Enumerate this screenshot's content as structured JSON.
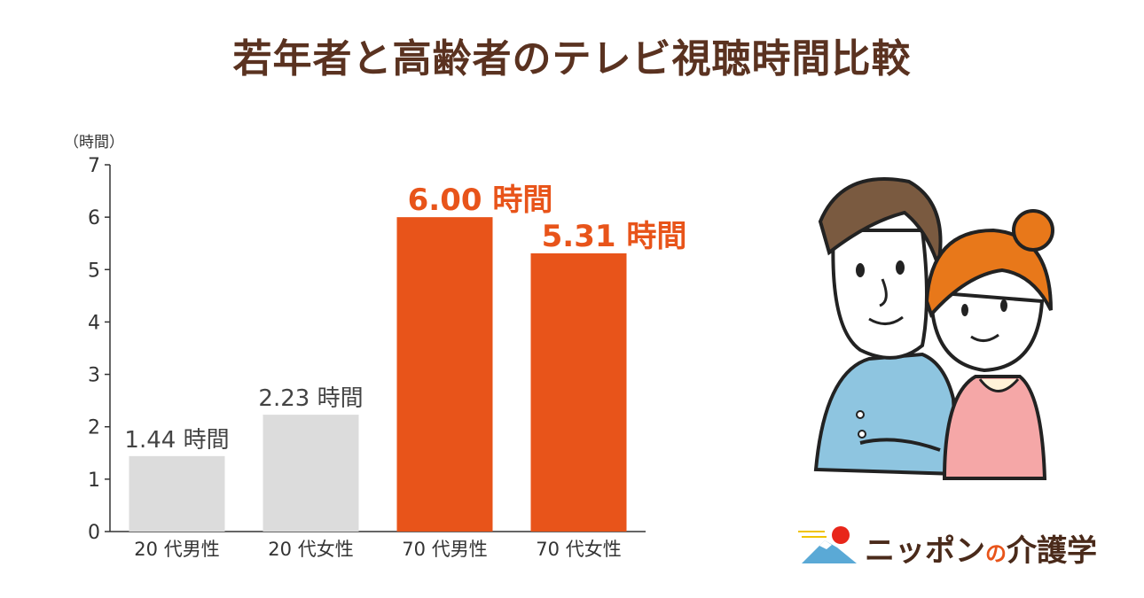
{
  "title": "若年者と高齢者のテレビ視聴時間比較",
  "brand": {
    "part1": "ニッポン",
    "part2": "の",
    "part3": "介護学"
  },
  "colors": {
    "gray_bar": "#dcdcdc",
    "accent": "#e8541a",
    "text": "#5a3220",
    "axis": "#333333"
  },
  "chart_data": {
    "type": "bar",
    "title": "若年者と高齢者のテレビ視聴時間比較",
    "xlabel": "",
    "ylabel": "（時間）",
    "ylim": [
      0,
      7
    ],
    "yticks": [
      0,
      1,
      2,
      3,
      4,
      5,
      6,
      7
    ],
    "categories": [
      "20 代男性",
      "20 代女性",
      "70 代男性",
      "70 代女性"
    ],
    "values": [
      1.44,
      2.23,
      6.0,
      5.31
    ],
    "data_labels": [
      "1.44 時間",
      "2.23 時間",
      "6.00 時間",
      "5.31 時間"
    ],
    "highlight": [
      false,
      false,
      true,
      true
    ],
    "grid": false,
    "legend": "none"
  }
}
